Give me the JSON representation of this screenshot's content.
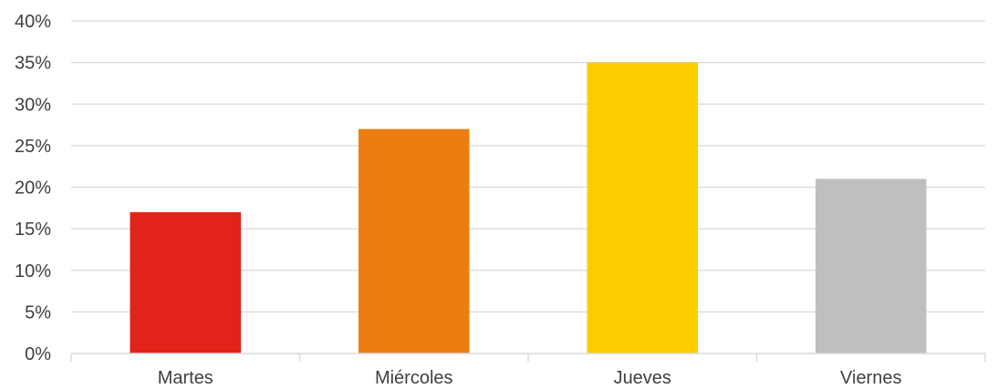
{
  "chart_data": {
    "type": "bar",
    "title": "",
    "xlabel": "",
    "ylabel": "",
    "categories": [
      "Martes",
      "Miércoles",
      "Jueves",
      "Viernes"
    ],
    "values": [
      17,
      27,
      35,
      21
    ],
    "value_unit": "%",
    "colors": [
      "#e2231a",
      "#ed7d11",
      "#fecd00",
      "#c0bfbf"
    ],
    "ylim": [
      0,
      40
    ],
    "yticks": [
      "0%",
      "5%",
      "10%",
      "15%",
      "20%",
      "25%",
      "30%",
      "35%",
      "40%"
    ],
    "grid": true,
    "legend": "none"
  }
}
